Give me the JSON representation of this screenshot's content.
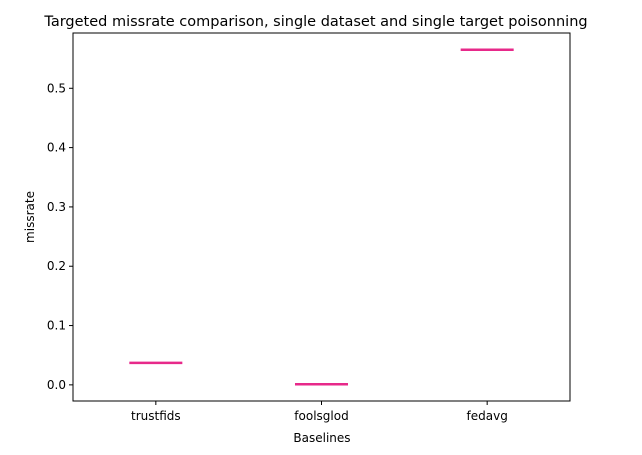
{
  "chart_data": {
    "type": "line",
    "title": "Targeted missrate comparison, single dataset and single target poisonning",
    "xlabel": "Baselines",
    "ylabel": "missrate",
    "categories": [
      "trustfids",
      "foolsglod",
      "fedavg"
    ],
    "series": [
      {
        "values": [
          0.037,
          0.001,
          0.565
        ],
        "color": "#e7298a"
      }
    ],
    "ylim": [
      -0.0272,
      0.5932
    ],
    "yticks": [
      0.0,
      0.1,
      0.2,
      0.3,
      0.4,
      0.5
    ],
    "ytick_labels": [
      "0.0",
      "0.1",
      "0.2",
      "0.3",
      "0.4",
      "0.5"
    ],
    "grid": false,
    "legend": "none",
    "marker": "horizontal dash"
  }
}
